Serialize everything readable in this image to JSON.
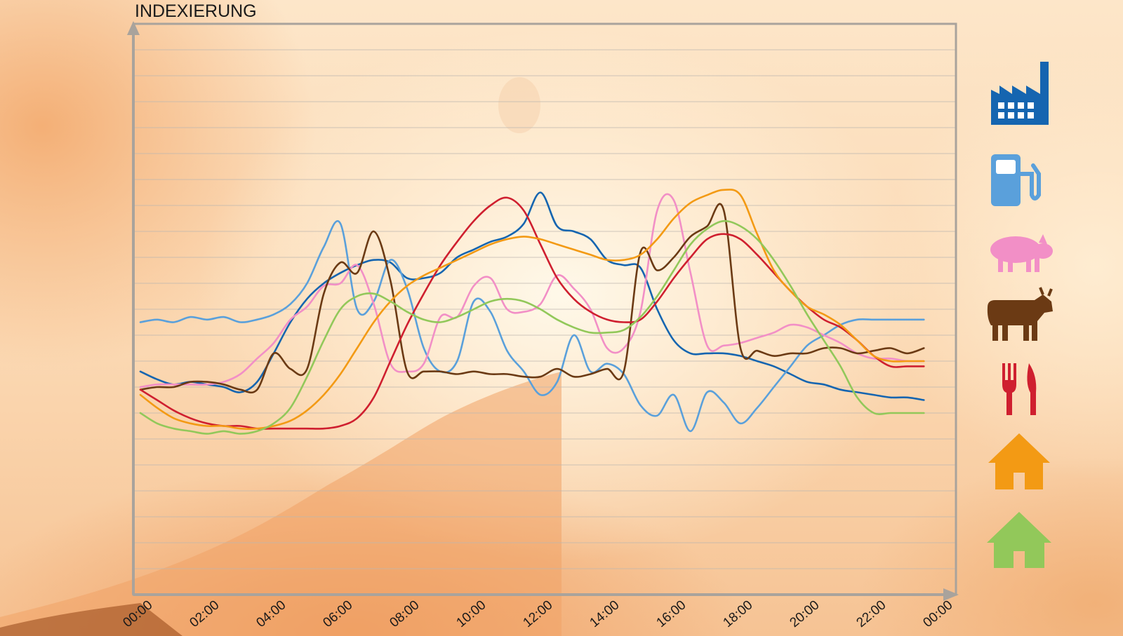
{
  "chart_data": {
    "type": "line",
    "title": "INDEXIERUNG",
    "xlabel": "",
    "ylabel": "INDEXIERUNG",
    "x_ticks": [
      "00:00",
      "02:00",
      "04:00",
      "06:00",
      "08:00",
      "10:00",
      "12:00",
      "14:00",
      "16:00",
      "18:00",
      "20:00",
      "22:00",
      "00:00"
    ],
    "x_range": [
      0,
      24
    ],
    "y_range": [
      0,
      22
    ],
    "grid": true,
    "legend": "icons-right",
    "series": [
      {
        "icon": "factory-icon",
        "color": "#1565b0",
        "x": [
          0,
          0.5,
          1,
          1.5,
          2,
          2.5,
          3,
          3.5,
          4,
          4.5,
          5,
          5.5,
          6,
          6.5,
          7,
          7.5,
          8,
          8.5,
          9,
          9.5,
          10,
          10.5,
          11,
          11.5,
          12,
          12.5,
          13,
          13.5,
          14,
          14.5,
          15,
          15.5,
          16,
          16.5,
          17,
          17.5,
          18,
          18.5,
          19,
          19.5,
          20,
          20.5,
          21,
          21.5,
          22,
          22.5,
          23,
          23.5
        ],
        "y": [
          8.6,
          8.3,
          8.1,
          8.2,
          8.1,
          8.0,
          7.8,
          8.2,
          9.3,
          10.5,
          11.4,
          12.0,
          12.4,
          12.7,
          12.9,
          12.8,
          12.2,
          12.2,
          12.4,
          13.0,
          13.3,
          13.6,
          13.8,
          14.3,
          15.5,
          14.2,
          14.0,
          13.7,
          12.9,
          12.7,
          12.6,
          11.0,
          9.8,
          9.3,
          9.3,
          9.3,
          9.2,
          9.0,
          8.8,
          8.5,
          8.2,
          8.1,
          7.9,
          7.8,
          7.7,
          7.6,
          7.6,
          7.5
        ]
      },
      {
        "icon": "fuel-pump-icon",
        "color": "#5aa0db",
        "x": [
          0,
          0.5,
          1,
          1.5,
          2,
          2.5,
          3,
          3.5,
          4,
          4.5,
          5,
          5.5,
          6,
          6.5,
          7,
          7.5,
          8,
          8.5,
          9,
          9.5,
          10,
          10.5,
          11,
          11.5,
          12,
          12.5,
          13,
          13.5,
          14,
          14.5,
          15,
          15.5,
          16,
          16.5,
          17,
          17.5,
          18,
          18.5,
          19,
          19.5,
          20,
          20.5,
          21,
          21.5,
          22,
          22.5,
          23,
          23.5
        ],
        "y": [
          10.5,
          10.6,
          10.5,
          10.7,
          10.6,
          10.7,
          10.5,
          10.6,
          10.8,
          11.2,
          12.0,
          13.4,
          14.3,
          11.0,
          11.3,
          12.9,
          11.8,
          9.5,
          8.6,
          9.0,
          11.3,
          10.9,
          9.4,
          8.6,
          7.7,
          8.2,
          10.0,
          8.6,
          8.9,
          8.5,
          7.3,
          6.9,
          7.7,
          6.3,
          7.8,
          7.4,
          6.6,
          7.2,
          8.0,
          8.8,
          9.6,
          10.0,
          10.4,
          10.6,
          10.6,
          10.6,
          10.6,
          10.6
        ]
      },
      {
        "icon": "pig-icon",
        "color": "#f28fc6",
        "x": [
          0,
          0.5,
          1,
          1.5,
          2,
          2.5,
          3,
          3.5,
          4,
          4.5,
          5,
          5.5,
          6,
          6.5,
          7,
          7.5,
          8,
          8.5,
          9,
          9.5,
          10,
          10.5,
          11,
          11.5,
          12,
          12.5,
          13,
          13.5,
          14,
          14.5,
          15,
          15.5,
          16,
          16.5,
          17,
          17.5,
          18,
          18.5,
          19,
          19.5,
          20,
          20.5,
          21,
          21.5,
          22,
          22.5,
          23,
          23.5
        ],
        "y": [
          8.0,
          8.1,
          8.1,
          8.1,
          8.1,
          8.2,
          8.5,
          9.1,
          9.7,
          10.6,
          11.1,
          11.9,
          12.0,
          12.7,
          11.2,
          8.9,
          8.6,
          8.9,
          10.7,
          10.7,
          11.9,
          12.2,
          11.0,
          10.9,
          11.2,
          12.3,
          11.8,
          11.0,
          9.5,
          9.5,
          10.9,
          14.8,
          15.2,
          12.4,
          9.6,
          9.6,
          9.7,
          9.9,
          10.1,
          10.4,
          10.3,
          10.0,
          9.7,
          9.3,
          9.1,
          9.1,
          9.0,
          9.0
        ]
      },
      {
        "icon": "cow-icon",
        "color": "#6b3a14",
        "x": [
          0,
          0.5,
          1,
          1.5,
          2,
          2.5,
          3,
          3.5,
          4,
          4.5,
          5,
          5.5,
          6,
          6.5,
          7,
          7.5,
          8,
          8.5,
          9,
          9.5,
          10,
          10.5,
          11,
          11.5,
          12,
          12.5,
          13,
          13.5,
          14,
          14.5,
          15,
          15.5,
          16,
          16.5,
          17,
          17.5,
          18,
          18.5,
          19,
          19.5,
          20,
          20.5,
          21,
          21.5,
          22,
          22.5,
          23,
          23.5
        ],
        "y": [
          7.9,
          8.0,
          8.0,
          8.2,
          8.2,
          8.1,
          7.9,
          7.9,
          9.3,
          8.7,
          8.7,
          11.6,
          12.8,
          12.4,
          14.0,
          12.1,
          8.6,
          8.6,
          8.6,
          8.5,
          8.6,
          8.5,
          8.5,
          8.4,
          8.4,
          8.7,
          8.4,
          8.5,
          8.7,
          8.6,
          13.2,
          12.5,
          13.0,
          13.8,
          14.2,
          14.8,
          9.5,
          9.4,
          9.2,
          9.3,
          9.3,
          9.5,
          9.5,
          9.3,
          9.4,
          9.5,
          9.3,
          9.5
        ]
      },
      {
        "icon": "cutlery-icon",
        "color": "#cf1f2f",
        "x": [
          0,
          0.5,
          1,
          1.5,
          2,
          2.5,
          3,
          3.5,
          4,
          4.5,
          5,
          5.5,
          6,
          6.5,
          7,
          7.5,
          8,
          8.5,
          9,
          9.5,
          10,
          10.5,
          11,
          11.5,
          12,
          12.5,
          13,
          13.5,
          14,
          14.5,
          15,
          15.5,
          16,
          16.5,
          17,
          17.5,
          18,
          18.5,
          19,
          19.5,
          20,
          20.5,
          21,
          21.5,
          22,
          22.5,
          23,
          23.5
        ],
        "y": [
          7.9,
          7.5,
          7.1,
          6.8,
          6.6,
          6.5,
          6.5,
          6.4,
          6.4,
          6.4,
          6.4,
          6.4,
          6.5,
          6.8,
          7.6,
          9.0,
          10.4,
          11.6,
          12.7,
          13.6,
          14.4,
          15.0,
          15.3,
          14.8,
          13.5,
          12.2,
          11.4,
          10.9,
          10.6,
          10.5,
          10.6,
          11.3,
          12.2,
          13.0,
          13.7,
          13.9,
          13.7,
          13.1,
          12.4,
          11.7,
          11.1,
          10.6,
          10.3,
          9.8,
          9.2,
          8.8,
          8.8,
          8.8
        ]
      },
      {
        "icon": "house-orange-icon",
        "color": "#f39a14",
        "x": [
          0,
          0.5,
          1,
          1.5,
          2,
          2.5,
          3,
          3.5,
          4,
          4.5,
          5,
          5.5,
          6,
          6.5,
          7,
          7.5,
          8,
          8.5,
          9,
          9.5,
          10,
          10.5,
          11,
          11.5,
          12,
          12.5,
          13,
          13.5,
          14,
          14.5,
          15,
          15.5,
          16,
          16.5,
          17,
          17.5,
          18,
          18.5,
          19,
          19.5,
          20,
          20.5,
          21,
          21.5,
          22,
          22.5,
          23,
          23.5
        ],
        "y": [
          7.7,
          7.2,
          6.8,
          6.6,
          6.5,
          6.5,
          6.4,
          6.4,
          6.5,
          6.7,
          7.1,
          7.7,
          8.5,
          9.5,
          10.5,
          11.3,
          11.9,
          12.3,
          12.6,
          12.9,
          13.2,
          13.5,
          13.7,
          13.8,
          13.7,
          13.5,
          13.3,
          13.1,
          12.9,
          12.9,
          13.1,
          13.7,
          14.5,
          15.1,
          15.4,
          15.6,
          15.4,
          13.9,
          12.5,
          11.7,
          11.1,
          10.8,
          10.4,
          9.8,
          9.2,
          9.0,
          9.0,
          9.0
        ]
      },
      {
        "icon": "house-green-icon",
        "color": "#92c85a",
        "x": [
          0,
          0.5,
          1,
          1.5,
          2,
          2.5,
          3,
          3.5,
          4,
          4.5,
          5,
          5.5,
          6,
          6.5,
          7,
          7.5,
          8,
          8.5,
          9,
          9.5,
          10,
          10.5,
          11,
          11.5,
          12,
          12.5,
          13,
          13.5,
          14,
          14.5,
          15,
          15.5,
          16,
          16.5,
          17,
          17.5,
          18,
          18.5,
          19,
          19.5,
          20,
          20.5,
          21,
          21.5,
          22,
          22.5,
          23,
          23.5
        ],
        "y": [
          7.0,
          6.6,
          6.4,
          6.3,
          6.2,
          6.3,
          6.2,
          6.3,
          6.6,
          7.2,
          8.4,
          9.8,
          11.0,
          11.5,
          11.6,
          11.3,
          10.9,
          10.6,
          10.5,
          10.7,
          11.0,
          11.3,
          11.4,
          11.3,
          11.0,
          10.6,
          10.3,
          10.1,
          10.1,
          10.2,
          10.7,
          11.5,
          12.5,
          13.5,
          14.1,
          14.4,
          14.2,
          13.7,
          12.9,
          11.9,
          10.8,
          9.8,
          8.8,
          7.6,
          7.0,
          7.0,
          7.0,
          7.0
        ]
      }
    ]
  }
}
